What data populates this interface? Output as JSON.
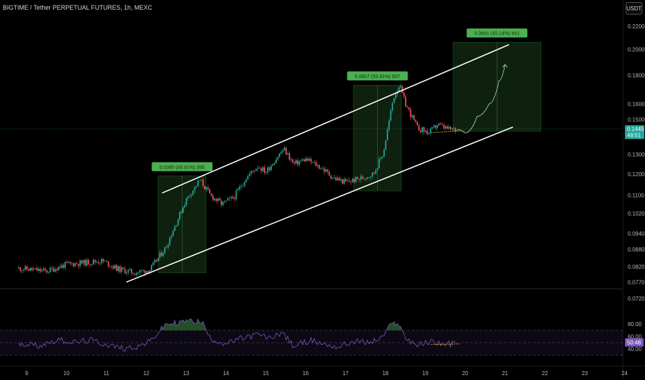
{
  "header": {
    "symbol_title": "BIGTIME / Tether PERPETUAL FUTURES, 1h, MEXC",
    "currency_button": "USDT"
  },
  "price_tag": {
    "price": "0.1445",
    "countdown": "49:51"
  },
  "rsi_tag": "50.48",
  "colors": {
    "up": "#26a69a",
    "down": "#ef5350",
    "box": "#4caf50",
    "channel": "#ffffff",
    "rsi": "#7e57c2",
    "dotted": "#f5c542"
  },
  "chart_data": {
    "type": "candlestick",
    "price_axis": {
      "ticks": [
        "0.2200",
        "0.2000",
        "0.1800",
        "0.1600",
        "0.1500",
        "0.1445",
        "0.1300",
        "0.1200",
        "0.1100",
        "0.1020",
        "0.0940",
        "0.0880",
        "0.0820",
        "0.0770",
        "0.0720"
      ],
      "scale": "log",
      "range": [
        0.0705,
        0.232
      ]
    },
    "time_axis": {
      "ticks": [
        "9",
        "10",
        "11",
        "12",
        "13",
        "14",
        "15",
        "16",
        "17",
        "18",
        "19",
        "20",
        "21",
        "22",
        "23",
        "24"
      ]
    },
    "price_path": [
      [
        8.8,
        0.0815
      ],
      [
        9.5,
        0.0805
      ],
      [
        10.0,
        0.0828
      ],
      [
        10.9,
        0.084
      ],
      [
        11.3,
        0.0812
      ],
      [
        11.7,
        0.08
      ],
      [
        12.1,
        0.081
      ],
      [
        12.5,
        0.089
      ],
      [
        12.8,
        0.1
      ],
      [
        13.0,
        0.108
      ],
      [
        13.35,
        0.117
      ],
      [
        13.6,
        0.11
      ],
      [
        13.9,
        0.106
      ],
      [
        14.2,
        0.109
      ],
      [
        14.5,
        0.118
      ],
      [
        14.8,
        0.124
      ],
      [
        15.0,
        0.121
      ],
      [
        15.45,
        0.133
      ],
      [
        15.7,
        0.125
      ],
      [
        16.0,
        0.1275
      ],
      [
        16.4,
        0.123
      ],
      [
        16.7,
        0.118
      ],
      [
        17.0,
        0.116
      ],
      [
        17.4,
        0.118
      ],
      [
        17.7,
        0.12
      ],
      [
        17.95,
        0.131
      ],
      [
        18.1,
        0.15
      ],
      [
        18.2,
        0.164
      ],
      [
        18.35,
        0.173
      ],
      [
        18.5,
        0.16
      ],
      [
        18.8,
        0.145
      ],
      [
        19.1,
        0.142
      ],
      [
        19.3,
        0.147
      ],
      [
        19.6,
        0.144
      ],
      [
        19.8,
        0.144
      ]
    ],
    "channel": {
      "upper": [
        [
          12.4,
          0.111
        ],
        [
          21.1,
          0.204
        ]
      ],
      "lower": [
        [
          11.5,
          0.077
        ],
        [
          21.2,
          0.1455
        ]
      ]
    },
    "projection_path": [
      [
        19.8,
        0.144
      ],
      [
        20.0,
        0.142
      ],
      [
        20.3,
        0.152
      ],
      [
        20.6,
        0.16
      ],
      [
        20.85,
        0.176
      ],
      [
        21.0,
        0.188
      ]
    ],
    "measure_boxes": [
      {
        "label": "0.0395 (49.91%) 395",
        "from_date": 12.3,
        "to_date": 13.5,
        "low": 0.08,
        "high": 0.119
      },
      {
        "label": "0.0607 (53.91%) 607",
        "from_date": 17.2,
        "to_date": 18.4,
        "low": 0.112,
        "high": 0.1727
      },
      {
        "label": "0.0641 (45.14%) 641",
        "from_date": 19.7,
        "to_date": 21.9,
        "low": 0.143,
        "high": 0.206
      }
    ],
    "support_segment": [
      [
        19.15,
        0.1422
      ],
      [
        19.85,
        0.1432
      ]
    ],
    "rsi": {
      "ticks": [
        "80.00",
        "60.00",
        "40.00"
      ],
      "range": [
        32,
        90
      ],
      "levels": [
        70,
        50,
        30
      ],
      "path": [
        [
          8.8,
          50
        ],
        [
          9.3,
          45
        ],
        [
          9.8,
          55
        ],
        [
          10.2,
          50
        ],
        [
          10.6,
          54
        ],
        [
          11.0,
          47
        ],
        [
          11.4,
          41
        ],
        [
          11.8,
          44
        ],
        [
          12.1,
          52
        ],
        [
          12.3,
          66
        ],
        [
          12.5,
          80
        ],
        [
          12.8,
          82
        ],
        [
          13.1,
          86
        ],
        [
          13.4,
          84
        ],
        [
          13.6,
          57
        ],
        [
          14.0,
          48
        ],
        [
          14.4,
          57
        ],
        [
          14.8,
          63
        ],
        [
          15.1,
          57
        ],
        [
          15.4,
          67
        ],
        [
          15.7,
          44
        ],
        [
          16.1,
          54
        ],
        [
          16.5,
          47
        ],
        [
          16.8,
          43
        ],
        [
          17.2,
          52
        ],
        [
          17.6,
          50
        ],
        [
          17.9,
          57
        ],
        [
          18.1,
          76
        ],
        [
          18.3,
          84
        ],
        [
          18.5,
          58
        ],
        [
          18.8,
          46
        ],
        [
          19.2,
          52
        ],
        [
          19.5,
          47
        ],
        [
          19.8,
          50
        ]
      ],
      "support_segment": [
        [
          19.15,
          47
        ],
        [
          19.85,
          48
        ]
      ]
    }
  }
}
